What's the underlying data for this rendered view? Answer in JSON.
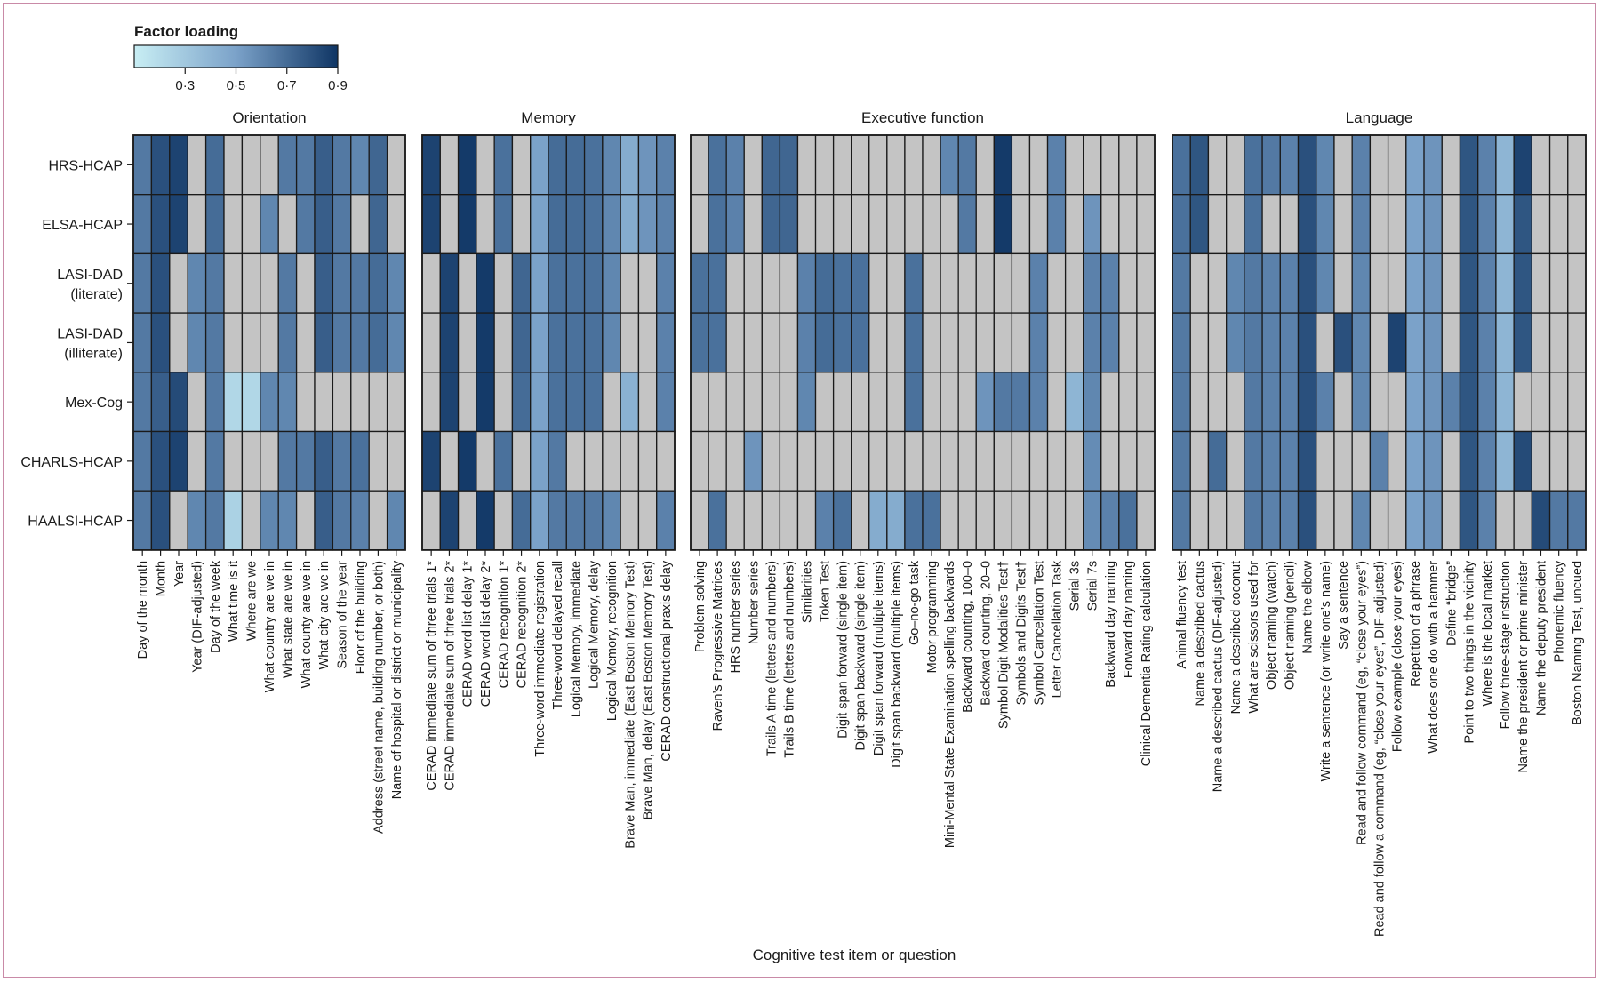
{
  "chart_data": {
    "type": "heatmap",
    "title": "",
    "xlabel": "Cognitive test item or question",
    "ylabel": "",
    "legend": {
      "title": "Factor loading",
      "ticks": [
        "0·3",
        "0·5",
        "0·7",
        "0·9"
      ],
      "tick_values": [
        0.3,
        0.5,
        0.7,
        0.9
      ],
      "range": [
        0.1,
        0.9
      ],
      "placement": "top-left",
      "missing_color": "#c4c4c4"
    },
    "colors": {
      "low": "#c8eef4",
      "mid": "#7ba2c9",
      "high": "#0f3564",
      "missing": "#c4c4c4",
      "grid": "#1a1a1a"
    },
    "rows": [
      "HRS-HCAP",
      "ELSA-HCAP",
      "LASI-DAD\n(literate)",
      "LASI-DAD\n(illiterate)",
      "Mex-Cog",
      "CHARLS-HCAP",
      "HAALSI-HCAP"
    ],
    "panels": [
      {
        "title": "Orientation",
        "columns": [
          "Day of the month",
          "Month",
          "Year",
          "Year (DIF-adjusted)",
          "Day of the week",
          "What time is it",
          "Where are we",
          "What country are we in",
          "What state are we in",
          "What county are we in",
          "What city are we in",
          "Season of the year",
          "Floor of the building",
          "Address (street name, building number, or both)",
          "Name of hospital or district or municipality"
        ],
        "values": [
          [
            0.65,
            0.8,
            0.85,
            null,
            0.7,
            null,
            null,
            null,
            0.65,
            0.65,
            0.75,
            0.65,
            0.6,
            0.72,
            null
          ],
          [
            0.65,
            0.8,
            0.85,
            null,
            0.7,
            null,
            null,
            0.6,
            null,
            0.65,
            0.75,
            0.65,
            null,
            0.72,
            null
          ],
          [
            0.65,
            0.8,
            null,
            0.6,
            0.65,
            null,
            null,
            null,
            0.65,
            null,
            0.75,
            0.65,
            0.65,
            0.7,
            0.6
          ],
          [
            0.65,
            0.8,
            null,
            0.6,
            0.65,
            null,
            null,
            null,
            0.65,
            null,
            0.75,
            0.65,
            0.65,
            0.7,
            0.6
          ],
          [
            0.65,
            0.75,
            0.82,
            null,
            0.65,
            0.22,
            0.22,
            0.6,
            0.6,
            null,
            null,
            null,
            null,
            null,
            null
          ],
          [
            0.65,
            0.8,
            0.85,
            null,
            0.65,
            null,
            null,
            null,
            0.65,
            0.65,
            0.75,
            0.65,
            0.68,
            null,
            null
          ],
          [
            0.65,
            0.8,
            null,
            0.6,
            0.65,
            0.25,
            null,
            0.6,
            0.6,
            null,
            0.75,
            0.65,
            0.62,
            null,
            0.6
          ]
        ]
      },
      {
        "title": "Memory",
        "columns": [
          "CERAD immediate sum of three trials 1*",
          "CERAD immediate sum of three trials 2*",
          "CERAD word list delay 1*",
          "CERAD word list delay 2*",
          "CERAD recognition 1*",
          "CERAD recognition 2*",
          "Three-word immediate registration",
          "Three-word delayed recall",
          "Logical Memory, immediate",
          "Logical Memory, delay",
          "Logical Memory, recognition",
          "Brave Man, immediate (East Boston Memory Test)",
          "Brave Man, delay (East Boston Memory Test)",
          "CERAD constructional praxis delay"
        ],
        "values": [
          [
            0.85,
            null,
            0.88,
            null,
            0.68,
            null,
            0.5,
            0.7,
            0.7,
            0.68,
            0.6,
            0.45,
            0.55,
            0.62
          ],
          [
            0.85,
            null,
            0.88,
            null,
            0.68,
            null,
            0.5,
            0.7,
            0.7,
            0.68,
            0.6,
            0.45,
            0.55,
            0.62
          ],
          [
            null,
            0.85,
            null,
            0.88,
            null,
            0.72,
            0.5,
            0.68,
            0.68,
            0.68,
            0.6,
            null,
            null,
            0.62
          ],
          [
            null,
            0.85,
            null,
            0.88,
            null,
            0.72,
            0.5,
            0.68,
            0.68,
            0.68,
            0.6,
            null,
            null,
            0.62
          ],
          [
            null,
            0.85,
            null,
            0.88,
            null,
            0.7,
            0.5,
            0.68,
            0.68,
            0.68,
            null,
            0.42,
            null,
            0.62
          ],
          [
            0.85,
            null,
            0.88,
            null,
            0.68,
            null,
            0.5,
            0.65,
            null,
            null,
            null,
            null,
            null,
            null
          ],
          [
            null,
            0.85,
            null,
            0.88,
            null,
            0.7,
            0.5,
            0.65,
            0.65,
            0.65,
            0.6,
            null,
            null,
            0.62
          ]
        ]
      },
      {
        "title": "Executive function",
        "columns": [
          "Problem solving",
          "Raven’s Progressive Matrices",
          "HRS number series",
          "Number series",
          "Trails A time (letters and numbers)",
          "Trails B time (letters and numbers)",
          "Similarities",
          "Token Test",
          "Digit span forward (single item)",
          "Digit span backward (single item)",
          "Digit span forward (multiple items)",
          "Digit span backward (multiple items)",
          "Go–no-go task",
          "Motor programming",
          "Mini-Mental State Examination spelling backwards",
          "Backward counting, 100–0",
          "Backward counting, 20–0",
          "Symbol Digit Modalities Test†",
          "Symbols and Digits Test†",
          "Symbol Cancellation Test",
          "Letter Cancellation Task",
          "Serial 3s",
          "Serial 7s",
          "Backward day naming",
          "Forward day naming",
          "Clinical Dementia Rating calculation"
        ],
        "values": [
          [
            null,
            0.68,
            0.62,
            null,
            0.72,
            0.72,
            null,
            null,
            null,
            null,
            null,
            null,
            null,
            null,
            0.6,
            0.65,
            null,
            0.88,
            null,
            null,
            0.62,
            null,
            null,
            null,
            null,
            null
          ],
          [
            null,
            0.68,
            0.62,
            null,
            0.72,
            0.72,
            null,
            null,
            null,
            null,
            null,
            null,
            null,
            null,
            null,
            0.65,
            null,
            0.88,
            null,
            null,
            0.62,
            null,
            0.55,
            null,
            null,
            null
          ],
          [
            0.68,
            0.68,
            null,
            null,
            null,
            null,
            0.62,
            0.7,
            0.68,
            0.68,
            null,
            null,
            0.68,
            null,
            null,
            null,
            null,
            null,
            null,
            0.62,
            null,
            null,
            0.62,
            0.62,
            null,
            null
          ],
          [
            0.68,
            0.68,
            null,
            null,
            null,
            null,
            0.62,
            0.7,
            0.68,
            0.68,
            null,
            null,
            0.68,
            null,
            null,
            null,
            null,
            null,
            null,
            0.62,
            null,
            null,
            0.62,
            0.62,
            null,
            null
          ],
          [
            null,
            null,
            null,
            null,
            null,
            null,
            0.6,
            null,
            null,
            null,
            null,
            null,
            0.68,
            null,
            null,
            null,
            0.55,
            0.65,
            0.65,
            0.62,
            null,
            0.4,
            0.6,
            null,
            null,
            null
          ],
          [
            null,
            null,
            null,
            0.55,
            null,
            null,
            null,
            null,
            null,
            null,
            null,
            null,
            null,
            null,
            null,
            null,
            null,
            null,
            null,
            null,
            null,
            null,
            0.58,
            null,
            null,
            null
          ],
          [
            null,
            0.68,
            null,
            null,
            null,
            null,
            null,
            0.62,
            0.68,
            null,
            0.45,
            0.45,
            0.68,
            0.68,
            null,
            null,
            null,
            null,
            null,
            null,
            null,
            null,
            0.58,
            0.62,
            0.68,
            null
          ]
        ]
      },
      {
        "title": "Language",
        "columns": [
          "Animal fluency test",
          "Name a described cactus",
          "Name a described cactus (DIF-adjusted)",
          "Name a described coconut",
          "What are scissors used for",
          "Object naming (watch)",
          "Object naming (pencil)",
          "Name the elbow",
          "Write a sentence (or write one’s name)",
          "Say a sentence",
          "Read and follow command (eg, “close your eyes”)",
          "Read and follow a command (eg, “close your eyes”, DIF-adjusted)",
          "Follow example (close your eyes)",
          "Repetition of a phrase",
          "What does one do with a hammer",
          "Define “bridge”",
          "Point to two things in the vicinity",
          "Where is the local market",
          "Follow three-stage instruction",
          "Name the president or prime minister",
          "Name the deputy president",
          "Phonemic fluency",
          "Boston Naming Test, uncued"
        ],
        "values": [
          [
            0.68,
            0.78,
            null,
            null,
            0.68,
            0.65,
            0.62,
            0.8,
            0.6,
            null,
            0.62,
            null,
            null,
            0.5,
            0.55,
            null,
            0.78,
            0.62,
            0.4,
            0.85,
            null,
            null,
            null
          ],
          [
            0.68,
            0.78,
            null,
            null,
            0.68,
            null,
            null,
            0.8,
            0.6,
            null,
            0.62,
            null,
            null,
            0.5,
            0.55,
            null,
            0.78,
            0.62,
            0.4,
            0.78,
            null,
            null,
            null
          ],
          [
            0.65,
            null,
            null,
            0.6,
            0.65,
            0.62,
            0.62,
            0.8,
            0.6,
            null,
            0.6,
            null,
            null,
            0.5,
            0.55,
            null,
            0.78,
            0.62,
            0.4,
            0.78,
            null,
            null,
            null
          ],
          [
            0.65,
            null,
            null,
            0.6,
            0.65,
            0.62,
            0.62,
            0.8,
            null,
            0.8,
            0.6,
            null,
            0.85,
            0.5,
            0.55,
            null,
            0.78,
            0.62,
            0.4,
            0.78,
            null,
            null,
            null
          ],
          [
            0.65,
            null,
            null,
            null,
            0.65,
            0.62,
            0.62,
            0.8,
            0.62,
            null,
            0.6,
            null,
            null,
            0.5,
            0.55,
            0.62,
            0.78,
            0.62,
            0.4,
            null,
            null,
            null,
            null
          ],
          [
            0.65,
            null,
            0.7,
            null,
            0.65,
            0.62,
            0.62,
            0.8,
            null,
            null,
            null,
            0.62,
            null,
            0.5,
            0.55,
            null,
            0.78,
            0.62,
            0.4,
            0.82,
            null,
            null,
            null
          ],
          [
            0.65,
            null,
            null,
            null,
            0.65,
            0.62,
            0.62,
            0.8,
            null,
            null,
            0.6,
            null,
            null,
            0.5,
            0.55,
            null,
            0.78,
            0.62,
            null,
            null,
            0.82,
            0.65,
            0.65
          ]
        ]
      }
    ]
  }
}
